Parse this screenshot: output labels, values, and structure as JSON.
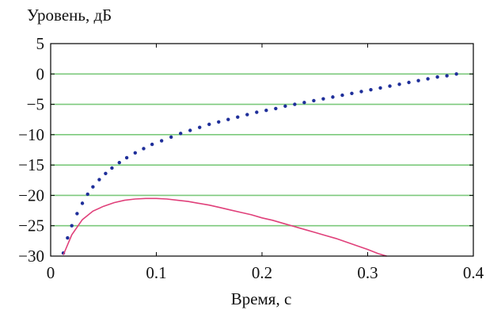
{
  "chart_data": {
    "type": "line",
    "title": "",
    "ylabel": "Уровень, дБ",
    "xlabel": "Время, с",
    "xlim": [
      0,
      0.4
    ],
    "ylim": [
      -30,
      5
    ],
    "xticks": [
      0,
      0.1,
      0.2,
      0.3,
      0.4
    ],
    "xtick_labels": [
      "0",
      "0.1",
      "0.2",
      "0.3",
      "0.4"
    ],
    "yticks": [
      5,
      0,
      -5,
      -10,
      -15,
      -20,
      -25,
      -30
    ],
    "ytick_labels": [
      "5",
      "0",
      "−5",
      "−10",
      "−15",
      "−20",
      "−25",
      "−30"
    ],
    "grid": "horizontal",
    "series": [
      {
        "style": "dotted",
        "color": "#1f2f9a",
        "x": [
          0.012,
          0.016,
          0.02,
          0.025,
          0.03,
          0.035,
          0.04,
          0.046,
          0.052,
          0.058,
          0.065,
          0.072,
          0.08,
          0.088,
          0.096,
          0.105,
          0.114,
          0.123,
          0.132,
          0.141,
          0.15,
          0.159,
          0.168,
          0.177,
          0.186,
          0.195,
          0.204,
          0.213,
          0.222,
          0.231,
          0.24,
          0.249,
          0.258,
          0.267,
          0.276,
          0.285,
          0.294,
          0.303,
          0.312,
          0.321,
          0.33,
          0.339,
          0.348,
          0.357,
          0.366,
          0.375,
          0.384
        ],
        "y": [
          -29.5,
          -27.0,
          -25.0,
          -23.0,
          -21.3,
          -19.8,
          -18.6,
          -17.4,
          -16.4,
          -15.5,
          -14.6,
          -13.8,
          -13.0,
          -12.3,
          -11.6,
          -11.0,
          -10.4,
          -9.8,
          -9.3,
          -8.8,
          -8.3,
          -7.9,
          -7.5,
          -7.1,
          -6.7,
          -6.3,
          -6.0,
          -5.7,
          -5.3,
          -5.0,
          -4.7,
          -4.4,
          -4.1,
          -3.8,
          -3.5,
          -3.2,
          -2.9,
          -2.6,
          -2.3,
          -2.0,
          -1.7,
          -1.4,
          -1.1,
          -0.8,
          -0.5,
          -0.3,
          0.0
        ]
      },
      {
        "style": "solid",
        "color": "#e0407a",
        "x": [
          0.012,
          0.02,
          0.03,
          0.04,
          0.05,
          0.06,
          0.07,
          0.08,
          0.09,
          0.1,
          0.11,
          0.12,
          0.13,
          0.14,
          0.15,
          0.16,
          0.17,
          0.18,
          0.19,
          0.2,
          0.21,
          0.22,
          0.23,
          0.24,
          0.25,
          0.26,
          0.27,
          0.28,
          0.29,
          0.3,
          0.31,
          0.318
        ],
        "y": [
          -29.8,
          -26.5,
          -24.0,
          -22.6,
          -21.8,
          -21.2,
          -20.8,
          -20.6,
          -20.5,
          -20.5,
          -20.6,
          -20.8,
          -21.0,
          -21.3,
          -21.6,
          -22.0,
          -22.4,
          -22.8,
          -23.2,
          -23.7,
          -24.1,
          -24.6,
          -25.1,
          -25.6,
          -26.1,
          -26.6,
          -27.1,
          -27.7,
          -28.3,
          -28.9,
          -29.6,
          -30.0
        ]
      }
    ]
  }
}
